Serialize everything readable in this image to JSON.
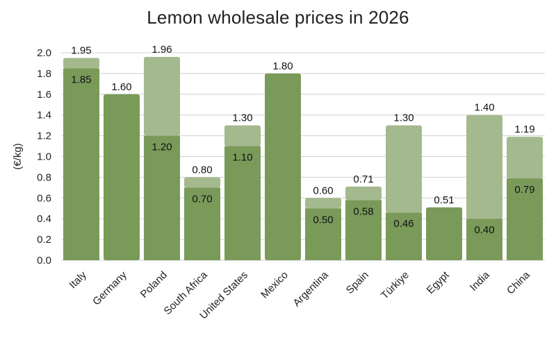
{
  "chart_data": {
    "type": "bar",
    "title": "Lemon wholesale prices in 2026",
    "ylabel": "(€/kg)",
    "xlabel": "",
    "ylim": [
      0,
      2.0
    ],
    "yticks": [
      "0.0",
      "0.2",
      "0.4",
      "0.6",
      "0.8",
      "1.0",
      "1.2",
      "1.4",
      "1.6",
      "1.8",
      "2.0"
    ],
    "grid": true,
    "categories": [
      "Italy",
      "Germany",
      "Poland",
      "South Africa",
      "United States",
      "Mexico",
      "Argentina",
      "Spain",
      "Türkiye",
      "Egypt",
      "India",
      "China"
    ],
    "series": [
      {
        "values": [
          1.85,
          1.6,
          1.2,
          0.7,
          1.1,
          1.8,
          0.5,
          0.58,
          0.46,
          0.51,
          0.4,
          0.79
        ],
        "labels": [
          "1.85",
          "1.60",
          "1.20",
          "0.70",
          "1.10",
          "1.80",
          "0.50",
          "0.58",
          "0.46",
          "0.51",
          "0.40",
          "0.79"
        ],
        "color": "#7a9a5a"
      },
      {
        "values": [
          1.95,
          null,
          1.96,
          0.8,
          1.3,
          null,
          0.6,
          0.71,
          1.3,
          null,
          1.4,
          1.19
        ],
        "labels": [
          "1.95",
          "",
          "1.96",
          "0.80",
          "1.30",
          "",
          "0.60",
          "0.71",
          "1.30",
          "",
          "1.40",
          "1.19"
        ],
        "color": "#a4b98d"
      }
    ]
  }
}
